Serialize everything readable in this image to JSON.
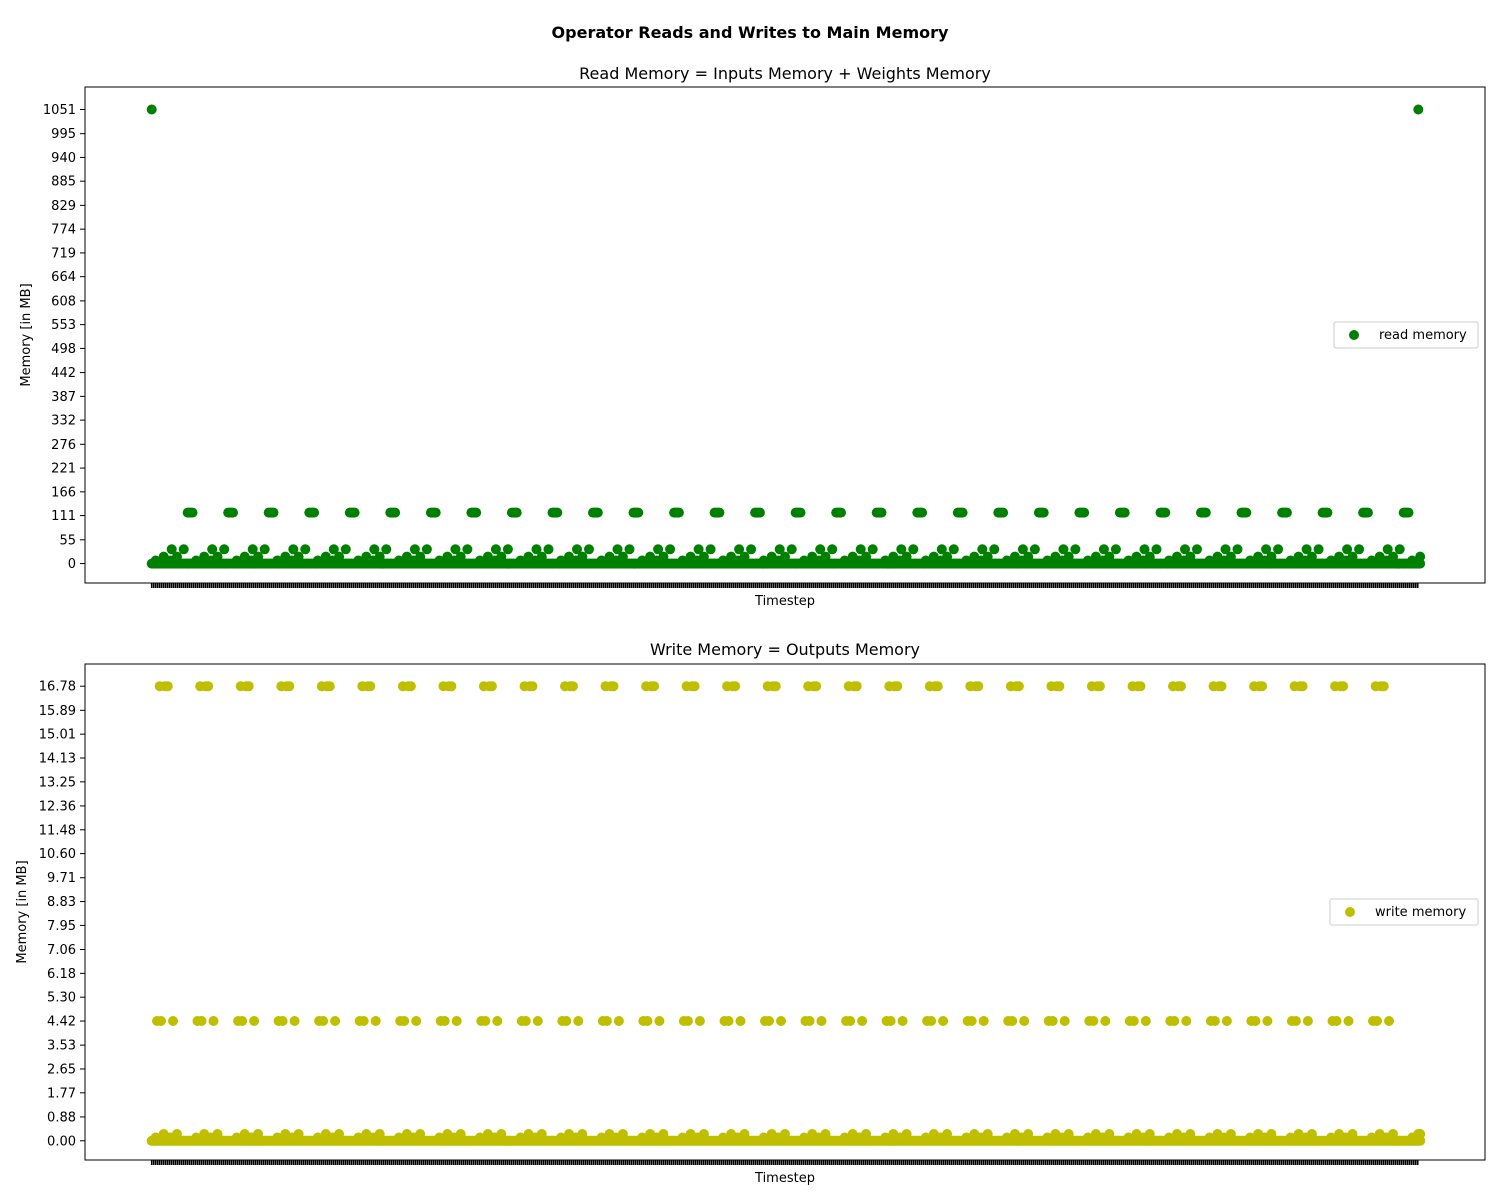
{
  "figure_title": "Operator Reads and Writes to Main Memory",
  "chart_data": [
    {
      "type": "scatter",
      "title": "Read Memory = Inputs Memory + Weights Memory",
      "xlabel": "Timestep",
      "ylabel": "Memory [in MB]",
      "ylim": [
        -45,
        1103
      ],
      "yticks": [
        "0",
        "55",
        "111",
        "166",
        "221",
        "276",
        "332",
        "387",
        "442",
        "498",
        "553",
        "608",
        "664",
        "719",
        "774",
        "829",
        "885",
        "940",
        "995",
        "1051"
      ],
      "xlim": [
        -50,
        1000
      ],
      "x_tick_labels": "none",
      "grid": false,
      "legend": "center-right",
      "series": [
        {
          "name": "read memory",
          "color": "#008000",
          "pattern": {
            "n_groups": 32,
            "group_period": 30.4,
            "first_group_x": 0,
            "base_value": 0,
            "low_values": [
              7,
              16,
              33
            ],
            "repeat_value": 118,
            "edge_points": [
              {
                "x": 0,
                "y": 1051
              },
              {
                "x": 950,
                "y": 1051
              }
            ]
          }
        }
      ]
    },
    {
      "type": "scatter",
      "title": "Write Memory = Outputs Memory",
      "xlabel": "Timestep",
      "ylabel": "Memory [in MB]",
      "ylim": [
        -0.71,
        17.6
      ],
      "yticks": [
        "0.00",
        "0.88",
        "1.77",
        "2.65",
        "3.53",
        "4.42",
        "5.30",
        "6.18",
        "7.06",
        "7.95",
        "8.83",
        "9.71",
        "10.60",
        "11.48",
        "12.36",
        "13.25",
        "14.13",
        "15.01",
        "15.89",
        "16.78"
      ],
      "xlim": [
        -50,
        1000
      ],
      "x_tick_labels": "none",
      "grid": false,
      "legend": "center-right",
      "series": [
        {
          "name": "write memory",
          "color": "#bfbf00",
          "pattern": {
            "n_groups": 32,
            "group_period": 30.4,
            "first_group_x": 0,
            "base_value": 0.0,
            "low_values": [
              0.12,
              0.25
            ],
            "mid_value": 4.42,
            "repeat_value": 16.78,
            "edge_points": [
              {
                "x": 950,
                "y": 0.25
              }
            ]
          }
        }
      ]
    }
  ]
}
